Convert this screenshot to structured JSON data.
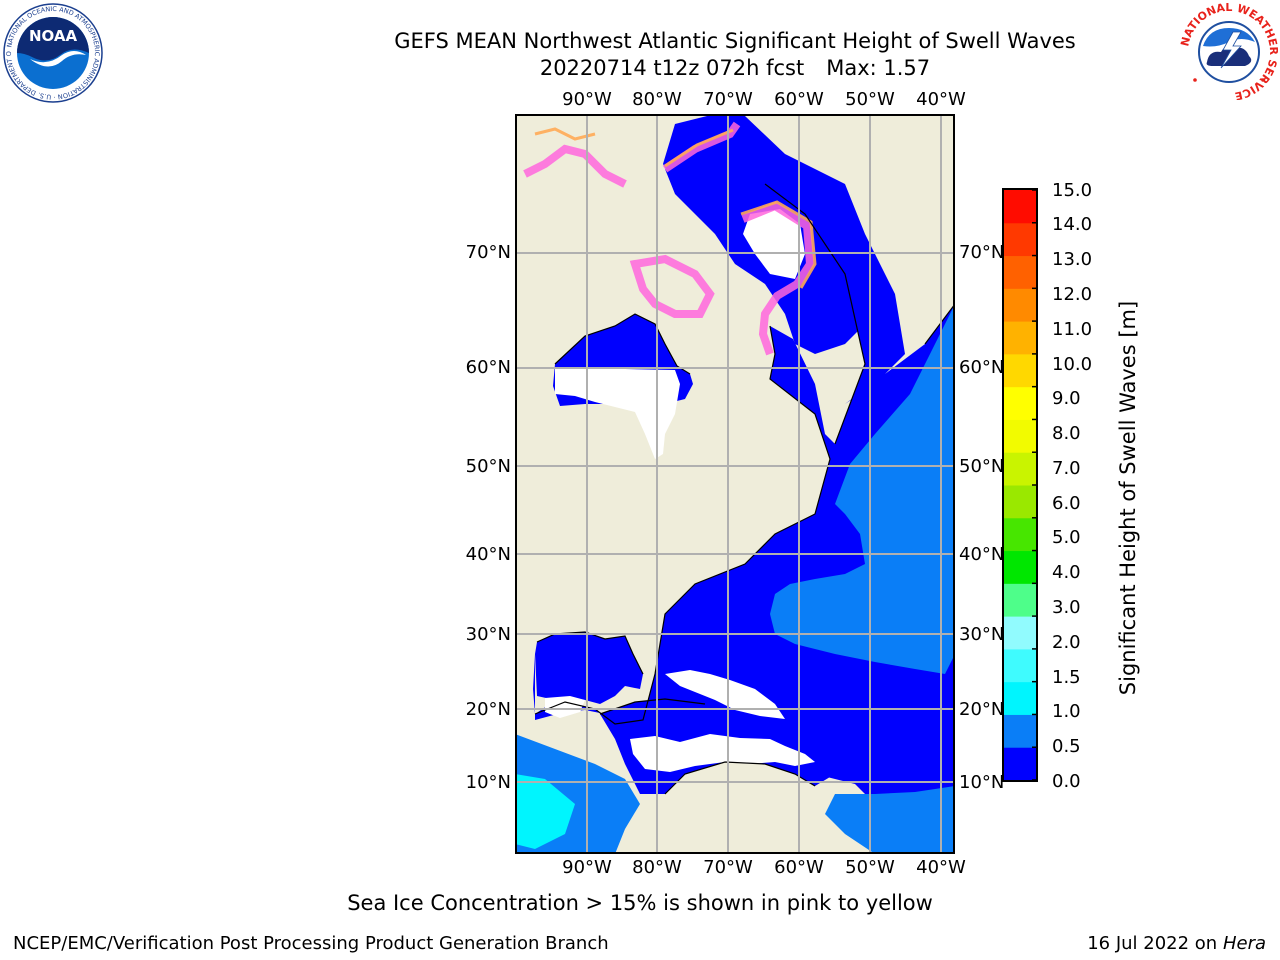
{
  "title": {
    "line1": "GEFS MEAN Northwest Atlantic Significant Height of Swell Waves",
    "line2a": "20220714 t12z 072h fcst",
    "line2b": "Max: 1.57"
  },
  "logos": {
    "noaa": {
      "icon": "noaa-logo-icon",
      "text": "NOAA",
      "ring_text": "NATIONAL OCEANIC AND ATMOSPHERIC ADMINISTRATION · U.S. DEPARTMENT OF COMMERCE"
    },
    "nws": {
      "icon": "nws-logo-icon",
      "ring_text": "NATIONAL WEATHER SERVICE"
    }
  },
  "map": {
    "lon_labels": [
      "90°W",
      "80°W",
      "70°W",
      "60°W",
      "50°W",
      "40°W"
    ],
    "lat_labels": [
      "70°N",
      "60°N",
      "50°N",
      "40°N",
      "30°N",
      "20°N",
      "10°N"
    ],
    "colors": {
      "land": "#efedda",
      "ocean_low": "#0000fe",
      "ocean_mid": "#0a7ef7",
      "ocean_high": "#00f5fe",
      "ice_pink": "#ff66dd",
      "ice_orange": "#ffaa55"
    }
  },
  "colorbar": {
    "label": "Significant Height of Swell Waves [m]",
    "ticks": [
      "15.0",
      "14.0",
      "13.0",
      "12.0",
      "11.0",
      "10.0",
      "9.0",
      "8.0",
      "7.0",
      "6.0",
      "5.0",
      "4.0",
      "3.0",
      "2.0",
      "1.5",
      "1.0",
      "0.5",
      "0.0"
    ],
    "colors_bottom_to_top": [
      "#0000fe",
      "#0a7ef7",
      "#00f5fe",
      "#3ffbfe",
      "#91fbfe",
      "#4efe8a",
      "#00e700",
      "#47e600",
      "#9ae800",
      "#c9f400",
      "#f2fb00",
      "#ffff00",
      "#ffd800",
      "#ffb200",
      "#ff8a00",
      "#ff6100",
      "#ff3900",
      "#ff0c00"
    ]
  },
  "footer": {
    "note": "Sea Ice Concentration > 15% is shown in pink to yellow",
    "credit": "NCEP/EMC/Verification Post Processing Product Generation Branch",
    "date": "16 Jul 2022 on ",
    "host": "Hera"
  }
}
